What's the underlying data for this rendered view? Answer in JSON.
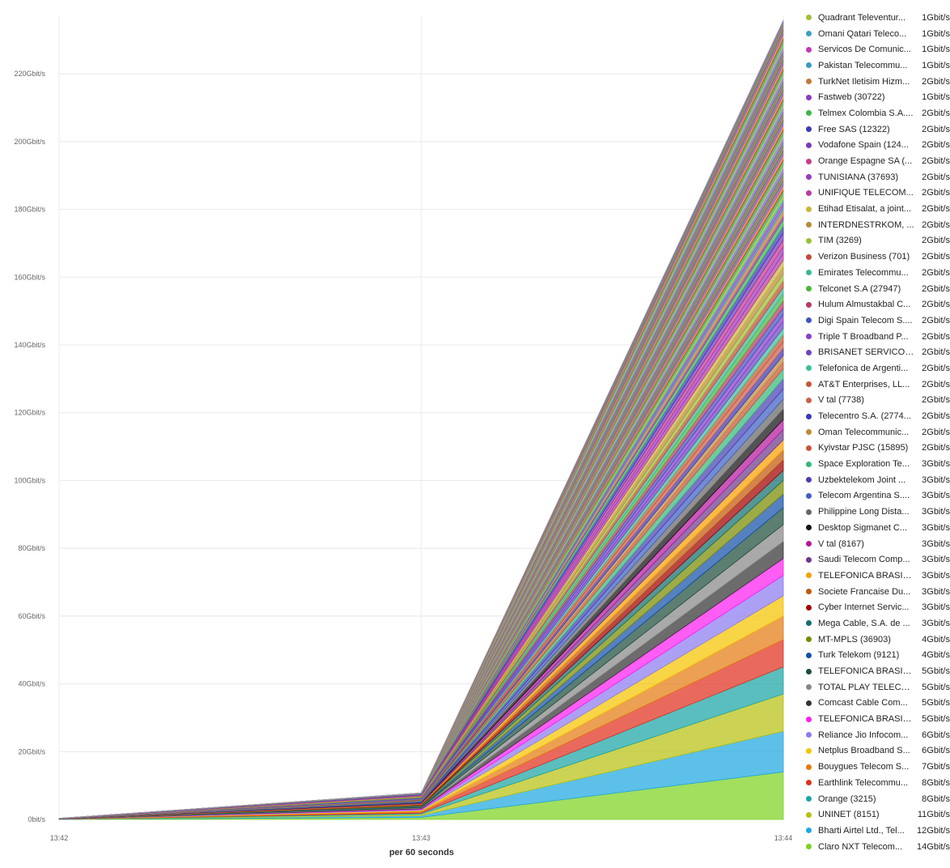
{
  "chart_data": {
    "type": "area",
    "stacked": true,
    "x": [
      "13:42",
      "13:43",
      "13:44"
    ],
    "xlabel": "per 60 seconds",
    "ylabel": "",
    "ylim": [
      0,
      235
    ],
    "unit": "Gbit/s",
    "y_ticks": [
      "0bit/s",
      "20Gbit/s",
      "40Gbit/s",
      "60Gbit/s",
      "80Gbit/s",
      "100Gbit/s",
      "120Gbit/s",
      "140Gbit/s",
      "160Gbit/s",
      "180Gbit/s",
      "200Gbit/s",
      "220Gbit/s"
    ],
    "grid": true,
    "legend_placement": "right",
    "totals_gbit": [
      0.3,
      7.2,
      236
    ],
    "series": [
      {
        "name": "Claro NXT Telecom...",
        "value_label": "14Gbit/s",
        "color": "#7ed321",
        "values": [
          0.02,
          0.6,
          14
        ]
      },
      {
        "name": "Bharti Airtel Ltd., Tel...",
        "value_label": "12Gbit/s",
        "color": "#1ea7e1",
        "values": [
          0.02,
          0.5,
          12
        ]
      },
      {
        "name": "UNINET (8151)",
        "value_label": "11Gbit/s",
        "color": "#b8c010",
        "values": [
          0.02,
          0.45,
          11
        ]
      },
      {
        "name": "Orange (3215)",
        "value_label": "8Gbit/s",
        "color": "#1aa5a5",
        "values": [
          0.01,
          0.3,
          8
        ]
      },
      {
        "name": "Earthlink Telecommu...",
        "value_label": "8Gbit/s",
        "color": "#e0301e",
        "values": [
          0.01,
          0.3,
          8
        ]
      },
      {
        "name": "Bouygues Telecom S...",
        "value_label": "7Gbit/s",
        "color": "#e37c10",
        "values": [
          0.01,
          0.28,
          7
        ]
      },
      {
        "name": "Netplus Broadband S...",
        "value_label": "6Gbit/s",
        "color": "#f5c400",
        "values": [
          0.01,
          0.25,
          6
        ]
      },
      {
        "name": "Reliance Jio Infocom...",
        "value_label": "6Gbit/s",
        "color": "#8c7cf0",
        "values": [
          0.01,
          0.25,
          6
        ]
      },
      {
        "name": "TELEFONICA BRASIL ...",
        "value_label": "5Gbit/s",
        "color": "#ff1ef0",
        "values": [
          0.01,
          0.2,
          5
        ]
      },
      {
        "name": "Comcast Cable Com...",
        "value_label": "5Gbit/s",
        "color": "#333333",
        "values": [
          0.01,
          0.2,
          5
        ]
      },
      {
        "name": "TOTAL PLAY TELECO...",
        "value_label": "5Gbit/s",
        "color": "#888888",
        "values": [
          0.01,
          0.2,
          5
        ]
      },
      {
        "name": "TELEFONICA BRASIL ...",
        "value_label": "5Gbit/s",
        "color": "#1d4d3a",
        "values": [
          0.01,
          0.2,
          5
        ]
      },
      {
        "name": "Turk Telekom (9121)",
        "value_label": "4Gbit/s",
        "color": "#1450a8",
        "values": [
          0.01,
          0.17,
          4
        ]
      },
      {
        "name": "MT-MPLS (36903)",
        "value_label": "4Gbit/s",
        "color": "#7a8a00",
        "values": [
          0.01,
          0.17,
          4
        ]
      },
      {
        "name": "Mega Cable, S.A. de ...",
        "value_label": "3Gbit/s",
        "color": "#136d6d",
        "values": [
          0.005,
          0.13,
          3
        ]
      },
      {
        "name": "Cyber Internet Servic...",
        "value_label": "3Gbit/s",
        "color": "#a10000",
        "values": [
          0.005,
          0.13,
          3
        ]
      },
      {
        "name": "Societe Francaise Du...",
        "value_label": "3Gbit/s",
        "color": "#c0580a",
        "values": [
          0.005,
          0.13,
          3
        ]
      },
      {
        "name": "TELEFONICA BRASIL ...",
        "value_label": "3Gbit/s",
        "color": "#f7a000",
        "values": [
          0.005,
          0.13,
          3
        ]
      },
      {
        "name": "Saudi Telecom Comp...",
        "value_label": "3Gbit/s",
        "color": "#6b3a8c",
        "values": [
          0.005,
          0.13,
          3
        ]
      },
      {
        "name": "V tal (8167)",
        "value_label": "3Gbit/s",
        "color": "#b5179e",
        "values": [
          0.005,
          0.13,
          3
        ]
      },
      {
        "name": "Desktop Sigmanet C...",
        "value_label": "3Gbit/s",
        "color": "#111111",
        "values": [
          0.005,
          0.13,
          3
        ]
      },
      {
        "name": "Philippine Long Dista...",
        "value_label": "3Gbit/s",
        "color": "#666666",
        "values": [
          0.005,
          0.13,
          3
        ]
      },
      {
        "name": "Telecom Argentina S....",
        "value_label": "3Gbit/s",
        "color": "#3f5fc4",
        "values": [
          0.005,
          0.13,
          3
        ]
      },
      {
        "name": "Uzbektelekom Joint ...",
        "value_label": "3Gbit/s",
        "color": "#4a3fb0",
        "values": [
          0.005,
          0.13,
          3
        ]
      },
      {
        "name": "Space Exploration Te...",
        "value_label": "3Gbit/s",
        "color": "#35b87a",
        "values": [
          0.005,
          0.13,
          3
        ]
      },
      {
        "name": "Kyivstar PJSC (15895)",
        "value_label": "2Gbit/s",
        "color": "#c9553a",
        "values": [
          0.004,
          0.09,
          2
        ]
      },
      {
        "name": "Oman Telecommunic...",
        "value_label": "2Gbit/s",
        "color": "#c08a3a",
        "values": [
          0.004,
          0.09,
          2
        ]
      },
      {
        "name": "Telecentro S.A. (2774...",
        "value_label": "2Gbit/s",
        "color": "#3a38b8",
        "values": [
          0.004,
          0.09,
          2
        ]
      },
      {
        "name": "V tal (7738)",
        "value_label": "2Gbit/s",
        "color": "#c9604a",
        "values": [
          0.004,
          0.09,
          2
        ]
      },
      {
        "name": "AT&T Enterprises, LL...",
        "value_label": "2Gbit/s",
        "color": "#c25a35",
        "values": [
          0.004,
          0.09,
          2
        ]
      },
      {
        "name": "Telefonica de Argenti...",
        "value_label": "2Gbit/s",
        "color": "#3cbf9a",
        "values": [
          0.004,
          0.09,
          2
        ]
      },
      {
        "name": "BRISANET SERVICOS...",
        "value_label": "2Gbit/s",
        "color": "#6c45c0",
        "values": [
          0.004,
          0.09,
          2
        ]
      },
      {
        "name": "Triple T Broadband P...",
        "value_label": "2Gbit/s",
        "color": "#8a3fc9",
        "values": [
          0.004,
          0.09,
          2
        ]
      },
      {
        "name": "Digi Spain Telecom S....",
        "value_label": "2Gbit/s",
        "color": "#3f55c0",
        "values": [
          0.004,
          0.09,
          2
        ]
      },
      {
        "name": "Hulum Almustakbal C...",
        "value_label": "2Gbit/s",
        "color": "#b5386a",
        "values": [
          0.004,
          0.09,
          2
        ]
      },
      {
        "name": "Telconet S.A (27947)",
        "value_label": "2Gbit/s",
        "color": "#4ab83a",
        "values": [
          0.004,
          0.09,
          2
        ]
      },
      {
        "name": "Emirates Telecommu...",
        "value_label": "2Gbit/s",
        "color": "#3ab89a",
        "values": [
          0.004,
          0.09,
          2
        ]
      },
      {
        "name": "Verizon Business (701)",
        "value_label": "2Gbit/s",
        "color": "#c24a3a",
        "values": [
          0.004,
          0.09,
          2
        ]
      },
      {
        "name": "TIM (3269)",
        "value_label": "2Gbit/s",
        "color": "#9abf3a",
        "values": [
          0.004,
          0.09,
          2
        ]
      },
      {
        "name": "INTERDNESTRKOM, ...",
        "value_label": "2Gbit/s",
        "color": "#b88a3a",
        "values": [
          0.004,
          0.09,
          2
        ]
      },
      {
        "name": "Etihad Etisalat, a joint...",
        "value_label": "2Gbit/s",
        "color": "#c8b83a",
        "values": [
          0.004,
          0.09,
          2
        ]
      },
      {
        "name": "UNIFIQUE TELECOM...",
        "value_label": "2Gbit/s",
        "color": "#b83aa0",
        "values": [
          0.004,
          0.09,
          2
        ]
      },
      {
        "name": "TUNISIANA (37693)",
        "value_label": "2Gbit/s",
        "color": "#9a3ac0",
        "values": [
          0.004,
          0.09,
          2
        ]
      },
      {
        "name": "Orange Espagne SA (...",
        "value_label": "2Gbit/s",
        "color": "#c83a8a",
        "values": [
          0.004,
          0.09,
          2
        ]
      },
      {
        "name": "Vodafone Spain (124...",
        "value_label": "2Gbit/s",
        "color": "#7a3ab8",
        "values": [
          0.004,
          0.09,
          2
        ]
      },
      {
        "name": "Free SAS (12322)",
        "value_label": "2Gbit/s",
        "color": "#3a3ab8",
        "values": [
          0.004,
          0.09,
          2
        ]
      },
      {
        "name": "Telmex Colombia S.A....",
        "value_label": "2Gbit/s",
        "color": "#3ab84a",
        "values": [
          0.004,
          0.09,
          2
        ]
      },
      {
        "name": "Fastweb (30722)",
        "value_label": "1Gbit/s",
        "color": "#8a3ac0",
        "values": [
          0.002,
          0.05,
          1
        ]
      },
      {
        "name": "TurkNet Iletisim Hizm...",
        "value_label": "2Gbit/s",
        "color": "#c07a3a",
        "values": [
          0.004,
          0.09,
          2
        ]
      },
      {
        "name": "Pakistan Telecommu...",
        "value_label": "1Gbit/s",
        "color": "#3a9ac0",
        "values": [
          0.002,
          0.05,
          1
        ]
      },
      {
        "name": "Servicos De Comunic...",
        "value_label": "1Gbit/s",
        "color": "#c03ab8",
        "values": [
          0.002,
          0.05,
          1
        ]
      },
      {
        "name": "Omani Qatari Teleco...",
        "value_label": "1Gbit/s",
        "color": "#3aa0c0",
        "values": [
          0.002,
          0.05,
          1
        ]
      },
      {
        "name": "Quadrant Televentur...",
        "value_label": "1Gbit/s",
        "color": "#a0c03a",
        "values": [
          0.002,
          0.05,
          1
        ]
      }
    ]
  }
}
